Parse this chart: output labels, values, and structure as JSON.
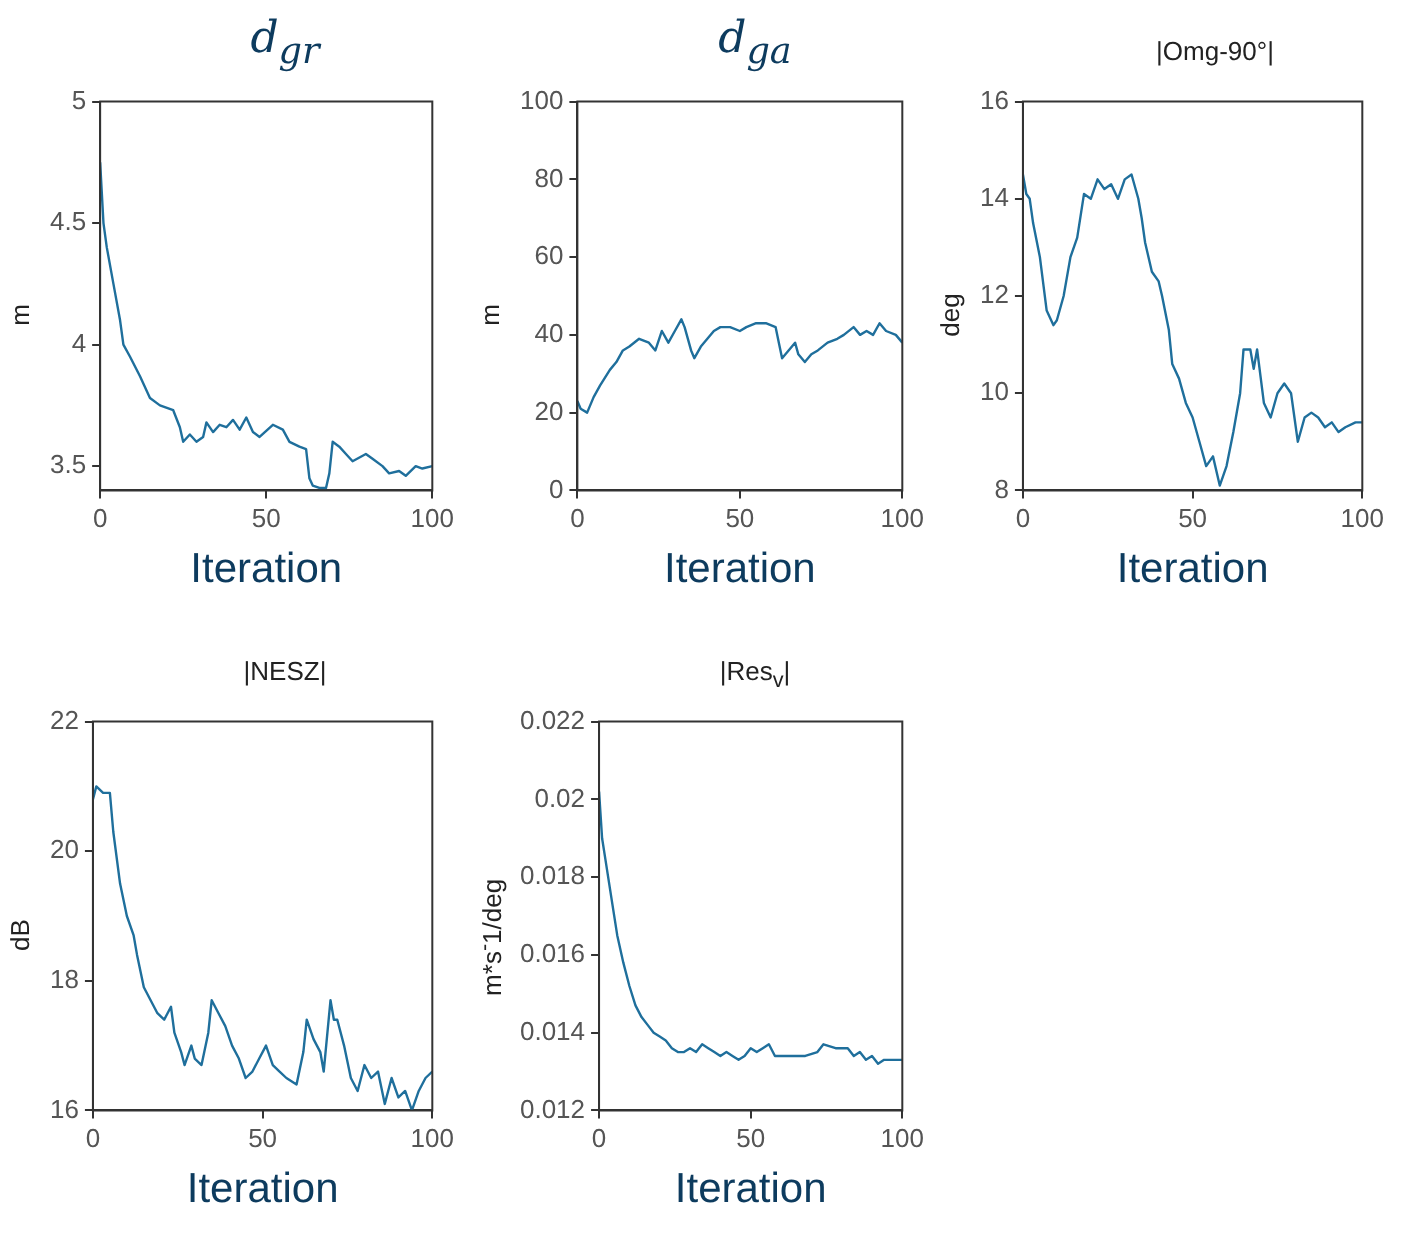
{
  "chart_data": [
    {
      "type": "line",
      "title": "d$_{gr}$",
      "xlabel": "Iteration",
      "ylabel": "m",
      "xlim": [
        0,
        100
      ],
      "xticks": [
        0,
        50,
        100
      ],
      "ylim": [
        3.4,
        5
      ],
      "yticks": [
        3.5,
        4,
        4.5,
        5
      ],
      "color": "#1f6f9c",
      "x": [
        0,
        1,
        2,
        4,
        6,
        7,
        9,
        12,
        15,
        18,
        22,
        24,
        25,
        27,
        29,
        31,
        32,
        34,
        36,
        38,
        40,
        42,
        44,
        46,
        48,
        52,
        55,
        57,
        60,
        62,
        63,
        64,
        66,
        68,
        69,
        70,
        72,
        74,
        76,
        80,
        82,
        85,
        87,
        90,
        92,
        95,
        97,
        100
      ],
      "values": [
        4.75,
        4.5,
        4.4,
        4.25,
        4.1,
        4.0,
        3.95,
        3.87,
        3.78,
        3.75,
        3.73,
        3.66,
        3.6,
        3.63,
        3.6,
        3.62,
        3.68,
        3.64,
        3.67,
        3.66,
        3.69,
        3.65,
        3.7,
        3.64,
        3.62,
        3.67,
        3.65,
        3.6,
        3.58,
        3.57,
        3.45,
        3.42,
        3.41,
        3.41,
        3.47,
        3.6,
        3.58,
        3.55,
        3.52,
        3.55,
        3.53,
        3.5,
        3.47,
        3.48,
        3.46,
        3.5,
        3.49,
        3.5
      ]
    },
    {
      "type": "line",
      "title": "d$_{ga}$",
      "xlabel": "Iteration",
      "ylabel": "m",
      "xlim": [
        0,
        100
      ],
      "xticks": [
        0,
        50,
        100
      ],
      "ylim": [
        0,
        100
      ],
      "yticks": [
        0,
        20,
        40,
        60,
        80,
        100
      ],
      "color": "#1f6f9c",
      "x": [
        0,
        1,
        3,
        5,
        7,
        10,
        12,
        14,
        16,
        19,
        22,
        24,
        26,
        28,
        30,
        32,
        33,
        35,
        36,
        38,
        40,
        42,
        44,
        47,
        50,
        52,
        55,
        58,
        61,
        62,
        63,
        65,
        67,
        68,
        70,
        72,
        74,
        77,
        80,
        82,
        85,
        87,
        89,
        91,
        93,
        95,
        98,
        100
      ],
      "values": [
        23,
        21,
        20,
        24,
        27,
        31,
        33,
        36,
        37,
        39,
        38,
        36,
        41,
        38,
        41,
        44,
        42,
        36,
        34,
        37,
        39,
        41,
        42,
        42,
        41,
        42,
        43,
        43,
        42,
        38,
        34,
        36,
        38,
        35,
        33,
        35,
        36,
        38,
        39,
        40,
        42,
        40,
        41,
        40,
        43,
        41,
        40,
        38
      ]
    },
    {
      "type": "line",
      "title": "|Omg-90°|",
      "xlabel": "Iteration",
      "ylabel": "deg",
      "xlim": [
        0,
        100
      ],
      "xticks": [
        0,
        50,
        100
      ],
      "ylim": [
        8,
        16
      ],
      "yticks": [
        8,
        10,
        12,
        14,
        16
      ],
      "color": "#1f6f9c",
      "x": [
        0,
        1,
        2,
        3,
        5,
        7,
        9,
        10,
        12,
        14,
        16,
        18,
        20,
        22,
        24,
        26,
        28,
        30,
        32,
        34,
        35,
        36,
        38,
        40,
        41,
        43,
        44,
        46,
        48,
        50,
        52,
        54,
        56,
        58,
        60,
        62,
        64,
        65,
        67,
        68,
        69,
        71,
        73,
        75,
        77,
        79,
        80,
        81,
        83,
        85,
        87,
        89,
        91,
        93,
        95,
        98,
        100
      ],
      "values": [
        14.5,
        14.1,
        14,
        13.5,
        12.8,
        11.7,
        11.4,
        11.5,
        12,
        12.8,
        13.2,
        14.1,
        14,
        14.4,
        14.2,
        14.3,
        14,
        14.4,
        14.5,
        14,
        13.6,
        13.1,
        12.5,
        12.3,
        12,
        11.3,
        10.6,
        10.3,
        9.8,
        9.5,
        9.0,
        8.5,
        8.7,
        8.1,
        8.5,
        9.2,
        10,
        10.9,
        10.9,
        10.5,
        10.9,
        9.8,
        9.5,
        10,
        10.2,
        10,
        9.5,
        9,
        9.5,
        9.6,
        9.5,
        9.3,
        9.4,
        9.2,
        9.3,
        9.4,
        9.4
      ]
    },
    {
      "type": "line",
      "title": "|NESZ|",
      "xlabel": "Iteration",
      "ylabel": "dB",
      "xlim": [
        0,
        100
      ],
      "xticks": [
        0,
        50,
        100
      ],
      "ylim": [
        16,
        22
      ],
      "yticks": [
        16,
        18,
        20,
        22
      ],
      "color": "#1f6f9c",
      "x": [
        0,
        1,
        3,
        5,
        6,
        8,
        10,
        12,
        13,
        15,
        17,
        19,
        21,
        23,
        24,
        26,
        27,
        29,
        30,
        32,
        34,
        35,
        37,
        39,
        41,
        43,
        45,
        47,
        49,
        51,
        53,
        55,
        57,
        60,
        62,
        63,
        65,
        67,
        68,
        70,
        71,
        72,
        74,
        76,
        78,
        80,
        82,
        84,
        86,
        88,
        90,
        92,
        94,
        96,
        98,
        100
      ],
      "values": [
        20.8,
        21,
        20.9,
        20.9,
        20.3,
        19.5,
        19,
        18.7,
        18.4,
        17.9,
        17.7,
        17.5,
        17.4,
        17.6,
        17.2,
        16.9,
        16.7,
        17,
        16.8,
        16.7,
        17.2,
        17.7,
        17.5,
        17.3,
        17,
        16.8,
        16.5,
        16.6,
        16.8,
        17,
        16.7,
        16.6,
        16.5,
        16.4,
        16.9,
        17.4,
        17.1,
        16.9,
        16.6,
        17.7,
        17.4,
        17.4,
        17,
        16.5,
        16.3,
        16.7,
        16.5,
        16.6,
        16.1,
        16.5,
        16.2,
        16.3,
        16,
        16.3,
        16.5,
        16.6
      ]
    },
    {
      "type": "line",
      "title": "|Res$_{v}$|",
      "xlabel": "Iteration",
      "ylabel": "m*s$^{-}$1/deg",
      "xlim": [
        0,
        100
      ],
      "xticks": [
        0,
        50,
        100
      ],
      "ylim": [
        0.012,
        0.022
      ],
      "yticks": [
        0.012,
        0.014,
        0.016,
        0.018,
        0.02,
        0.022
      ],
      "color": "#1f6f9c",
      "x": [
        0,
        1,
        2,
        4,
        6,
        8,
        10,
        12,
        14,
        16,
        18,
        20,
        22,
        24,
        26,
        28,
        30,
        32,
        34,
        36,
        38,
        40,
        42,
        44,
        46,
        48,
        50,
        52,
        54,
        56,
        58,
        60,
        64,
        68,
        72,
        74,
        78,
        82,
        84,
        86,
        88,
        90,
        92,
        94,
        96,
        100
      ],
      "values": [
        0.0202,
        0.019,
        0.0185,
        0.0175,
        0.0165,
        0.0158,
        0.0152,
        0.0147,
        0.0144,
        0.0142,
        0.014,
        0.0139,
        0.0138,
        0.0136,
        0.0135,
        0.0135,
        0.0136,
        0.0135,
        0.0137,
        0.0136,
        0.0135,
        0.0134,
        0.0135,
        0.0134,
        0.0133,
        0.0134,
        0.0136,
        0.0135,
        0.0136,
        0.0137,
        0.0134,
        0.0134,
        0.0134,
        0.0134,
        0.0135,
        0.0137,
        0.0136,
        0.0136,
        0.0134,
        0.0135,
        0.0133,
        0.0134,
        0.0132,
        0.0133,
        0.0133,
        0.0133
      ]
    }
  ]
}
